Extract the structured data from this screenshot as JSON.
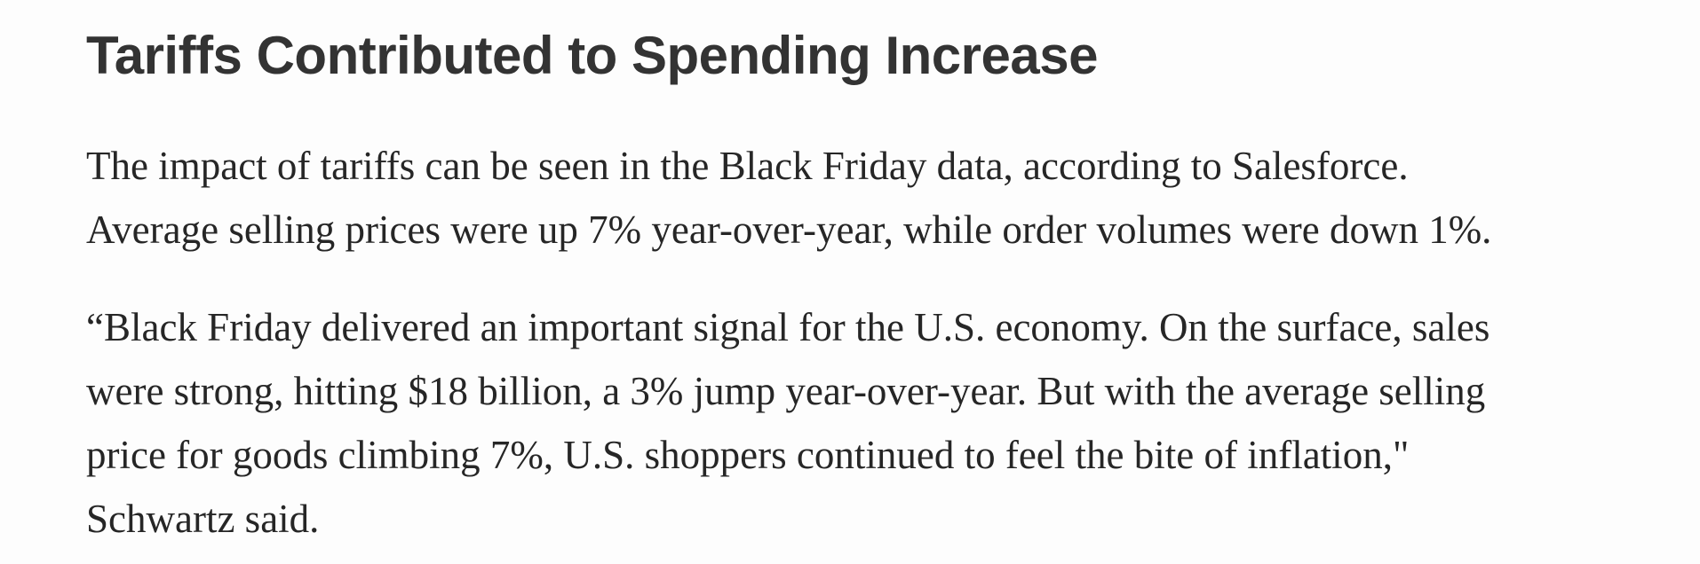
{
  "heading": "Tariffs Contributed to Spending Increase",
  "paragraphs": [
    {
      "lines": [
        "The impact of tariffs can be seen in the Black Friday data, according to Salesforce.",
        "Average selling prices were up 7% year-over-year, while order volumes were down 1%."
      ]
    },
    {
      "lines": [
        "“Black Friday delivered an important signal for the U.S. economy. On the surface, sales",
        "were strong, hitting $18 billion, a 3% jump year-over-year. But with the average selling",
        "price for goods climbing 7%, U.S. shoppers continued to feel the bite of inflation,\"",
        "Schwartz said."
      ]
    }
  ]
}
